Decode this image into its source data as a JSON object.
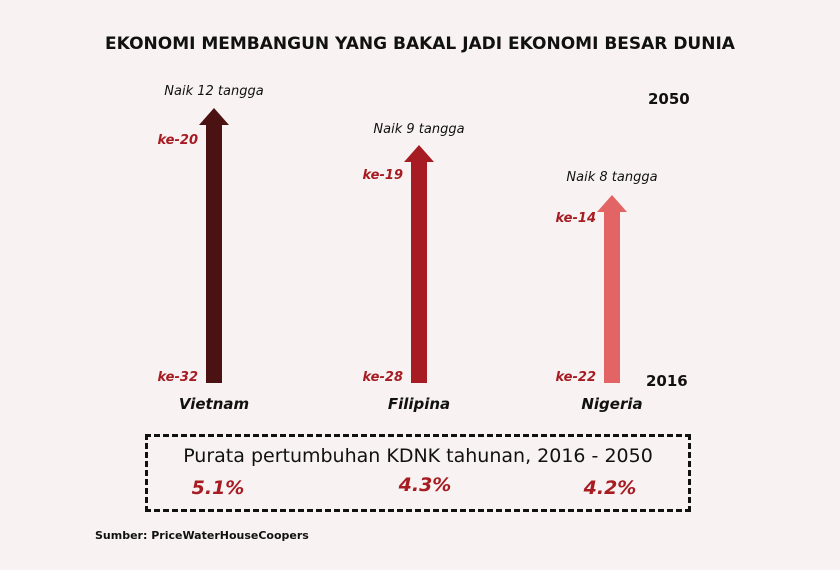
{
  "chart_data": {
    "type": "bar",
    "title": "EKONOMI MEMBANGUN YANG BAKAL JADI EKONOMI BESAR DUNIA",
    "start_year": "2016",
    "end_year": "2050",
    "series": [
      {
        "country": "Vietnam",
        "from": "ke-32",
        "to": "ke-20",
        "rise": 12,
        "rise_label": "Naik 12 tangga",
        "growth": "5.1%",
        "color": "#4a1212"
      },
      {
        "country": "Filipina",
        "from": "ke-28",
        "to": "ke-19",
        "rise": 9,
        "rise_label": "Naik 9 tangga",
        "growth": "4.3%",
        "color": "#a61c22"
      },
      {
        "country": "Nigeria",
        "from": "ke-22",
        "to": "ke-14",
        "rise": 8,
        "rise_label": "Naik 8 tangga",
        "growth": "4.2%",
        "color": "#e36464"
      }
    ],
    "growth_title": "Purata pertumbuhan KDNK tahunan, 2016 - 2050"
  },
  "source": "Sumber: PriceWaterHouseCoopers"
}
